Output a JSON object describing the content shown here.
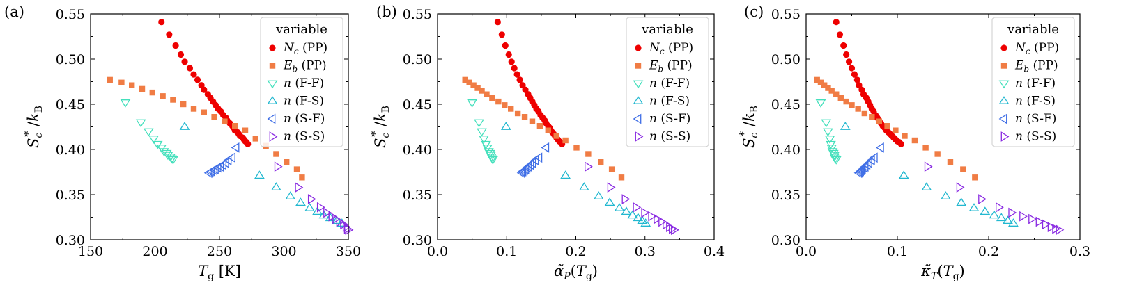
{
  "chart_data": [
    {
      "type": "scatter",
      "panel_label": "(a)",
      "xlabel": "T_g [K]",
      "ylabel": "S_c* / k_B",
      "xlim": [
        150,
        350
      ],
      "ylim": [
        0.3,
        0.55
      ],
      "xticks": [
        "150",
        "200",
        "250",
        "300",
        "350"
      ],
      "yticks": [
        "0.30",
        "0.35",
        "0.40",
        "0.45",
        "0.50",
        "0.55"
      ],
      "legend_title": "variable",
      "legend_position": "top-right",
      "series": [
        {
          "name": "Nc (PP)",
          "var": "N",
          "sub": "c",
          "tag": "(PP)",
          "marker": "circle",
          "color": "#ee0000",
          "filled": true,
          "x": [
            205,
            211,
            216,
            220,
            223,
            227,
            230,
            233,
            236,
            238,
            241,
            243,
            245,
            247,
            249,
            251,
            253,
            255,
            256,
            258,
            260,
            261,
            262,
            264,
            265,
            266,
            268,
            269,
            270,
            271,
            272
          ],
          "y": [
            0.541,
            0.527,
            0.515,
            0.505,
            0.497,
            0.49,
            0.483,
            0.477,
            0.471,
            0.466,
            0.461,
            0.457,
            0.453,
            0.449,
            0.445,
            0.442,
            0.438,
            0.435,
            0.432,
            0.429,
            0.426,
            0.424,
            0.421,
            0.419,
            0.417,
            0.415,
            0.413,
            0.411,
            0.409,
            0.408,
            0.406
          ]
        },
        {
          "name": "Eb (PP)",
          "var": "E",
          "sub": "b",
          "tag": "(PP)",
          "marker": "square",
          "color": "#f07c44",
          "filled": true,
          "x": [
            165,
            174,
            182,
            190,
            198,
            206,
            214,
            222,
            230,
            238,
            246,
            254,
            262,
            270,
            278,
            286,
            294,
            302,
            310,
            314
          ],
          "y": [
            0.477,
            0.474,
            0.471,
            0.467,
            0.463,
            0.459,
            0.455,
            0.45,
            0.445,
            0.441,
            0.436,
            0.431,
            0.426,
            0.421,
            0.412,
            0.404,
            0.395,
            0.386,
            0.378,
            0.369
          ]
        },
        {
          "name": "n (F-F)",
          "var": "n",
          "sub": "",
          "tag": "(F-F)",
          "marker": "tri_down",
          "color": "#44e0bc",
          "filled": false,
          "x": [
            177,
            189,
            195,
            199,
            202,
            205,
            207,
            209,
            210,
            212,
            213,
            214
          ],
          "y": [
            0.452,
            0.43,
            0.42,
            0.412,
            0.406,
            0.402,
            0.398,
            0.396,
            0.394,
            0.392,
            0.39,
            0.389
          ]
        },
        {
          "name": "n (F-S)",
          "var": "n",
          "sub": "",
          "tag": "(F-S)",
          "marker": "tri_up",
          "color": "#22b8d0",
          "filled": false,
          "x": [
            223,
            281,
            294,
            305,
            313,
            320,
            326,
            331,
            336,
            341,
            345
          ],
          "y": [
            0.425,
            0.371,
            0.358,
            0.348,
            0.341,
            0.335,
            0.331,
            0.327,
            0.324,
            0.321,
            0.318
          ]
        },
        {
          "name": "n (S-F)",
          "var": "n",
          "sub": "",
          "tag": "(S-F)",
          "marker": "tri_left",
          "color": "#3f6ee6",
          "filled": false,
          "x": [
            263,
            260,
            257,
            255,
            253,
            251,
            249,
            247,
            246,
            244,
            243,
            242
          ],
          "y": [
            0.402,
            0.391,
            0.388,
            0.385,
            0.383,
            0.381,
            0.38,
            0.378,
            0.377,
            0.376,
            0.375,
            0.374
          ]
        },
        {
          "name": "n (S-S)",
          "var": "n",
          "sub": "",
          "tag": "(S-S)",
          "marker": "tri_right",
          "color": "#8a2be2",
          "filled": false,
          "x": [
            295,
            311,
            321,
            328,
            333,
            337,
            340,
            343,
            346,
            348,
            349,
            350
          ],
          "y": [
            0.381,
            0.358,
            0.345,
            0.336,
            0.33,
            0.326,
            0.323,
            0.32,
            0.317,
            0.314,
            0.312,
            0.311
          ]
        }
      ]
    },
    {
      "type": "scatter",
      "panel_label": "(b)",
      "xlabel": "α̃_P(T_g)",
      "ylabel": "S_c* / k_B",
      "xlim": [
        0.0,
        0.4
      ],
      "ylim": [
        0.3,
        0.55
      ],
      "xticks": [
        "0.0",
        "0.1",
        "0.2",
        "0.3",
        "0.4"
      ],
      "yticks": [
        "0.30",
        "0.35",
        "0.40",
        "0.45",
        "0.50",
        "0.55"
      ],
      "legend_title": "variable",
      "legend_position": "top-right",
      "series": [
        {
          "name": "Nc (PP)",
          "var": "N",
          "sub": "c",
          "tag": "(PP)",
          "marker": "circle",
          "color": "#ee0000",
          "filled": true,
          "x": [
            0.087,
            0.093,
            0.098,
            0.103,
            0.107,
            0.111,
            0.115,
            0.119,
            0.123,
            0.127,
            0.131,
            0.134,
            0.137,
            0.14,
            0.143,
            0.146,
            0.149,
            0.152,
            0.155,
            0.157,
            0.16,
            0.162,
            0.164,
            0.166,
            0.168,
            0.17,
            0.172,
            0.174,
            0.176,
            0.178,
            0.18
          ],
          "y": [
            0.541,
            0.527,
            0.515,
            0.505,
            0.497,
            0.49,
            0.483,
            0.477,
            0.471,
            0.466,
            0.461,
            0.457,
            0.453,
            0.449,
            0.445,
            0.442,
            0.438,
            0.435,
            0.432,
            0.429,
            0.426,
            0.424,
            0.421,
            0.419,
            0.417,
            0.415,
            0.413,
            0.411,
            0.409,
            0.408,
            0.406
          ]
        },
        {
          "name": "Eb (PP)",
          "var": "E",
          "sub": "b",
          "tag": "(PP)",
          "marker": "square",
          "color": "#f07c44",
          "filled": true,
          "x": [
            0.04,
            0.046,
            0.052,
            0.058,
            0.064,
            0.071,
            0.079,
            0.088,
            0.097,
            0.106,
            0.116,
            0.126,
            0.137,
            0.148,
            0.16,
            0.172,
            0.185,
            0.201,
            0.218,
            0.236,
            0.252,
            0.266
          ],
          "y": [
            0.477,
            0.474,
            0.471,
            0.468,
            0.465,
            0.461,
            0.457,
            0.453,
            0.449,
            0.445,
            0.44,
            0.436,
            0.431,
            0.426,
            0.421,
            0.415,
            0.41,
            0.402,
            0.395,
            0.386,
            0.378,
            0.369
          ]
        },
        {
          "name": "n (F-F)",
          "var": "n",
          "sub": "",
          "tag": "(F-F)",
          "marker": "tri_down",
          "color": "#44e0bc",
          "filled": false,
          "x": [
            0.05,
            0.06,
            0.064,
            0.067,
            0.07,
            0.072,
            0.074,
            0.076,
            0.077,
            0.078,
            0.079,
            0.08
          ],
          "y": [
            0.452,
            0.43,
            0.42,
            0.412,
            0.406,
            0.402,
            0.398,
            0.396,
            0.394,
            0.392,
            0.39,
            0.389
          ]
        },
        {
          "name": "n (F-S)",
          "var": "n",
          "sub": "",
          "tag": "(F-S)",
          "marker": "tri_up",
          "color": "#22b8d0",
          "filled": false,
          "x": [
            0.099,
            0.185,
            0.212,
            0.233,
            0.249,
            0.263,
            0.273,
            0.282,
            0.29,
            0.296,
            0.301
          ],
          "y": [
            0.425,
            0.371,
            0.358,
            0.348,
            0.341,
            0.335,
            0.331,
            0.327,
            0.324,
            0.321,
            0.318
          ]
        },
        {
          "name": "n (S-F)",
          "var": "n",
          "sub": "",
          "tag": "(S-F)",
          "marker": "tri_left",
          "color": "#3f6ee6",
          "filled": false,
          "x": [
            0.157,
            0.147,
            0.142,
            0.138,
            0.135,
            0.132,
            0.13,
            0.128,
            0.126,
            0.124,
            0.123,
            0.122
          ],
          "y": [
            0.402,
            0.391,
            0.388,
            0.385,
            0.383,
            0.381,
            0.38,
            0.378,
            0.377,
            0.376,
            0.375,
            0.374
          ]
        },
        {
          "name": "n (S-S)",
          "var": "n",
          "sub": "",
          "tag": "(S-S)",
          "marker": "tri_right",
          "color": "#8a2be2",
          "filled": false,
          "x": [
            0.217,
            0.25,
            0.271,
            0.287,
            0.299,
            0.309,
            0.317,
            0.324,
            0.33,
            0.335,
            0.339,
            0.342
          ],
          "y": [
            0.381,
            0.358,
            0.345,
            0.336,
            0.33,
            0.326,
            0.323,
            0.32,
            0.317,
            0.314,
            0.312,
            0.311
          ]
        }
      ]
    },
    {
      "type": "scatter",
      "panel_label": "(c)",
      "xlabel": "κ̃_T(T_g)",
      "ylabel": "S_c* / k_B",
      "xlim": [
        0.0,
        0.3
      ],
      "ylim": [
        0.3,
        0.55
      ],
      "xticks": [
        "0.0",
        "0.1",
        "0.2",
        "0.3"
      ],
      "yticks": [
        "0.30",
        "0.35",
        "0.40",
        "0.45",
        "0.50",
        "0.55"
      ],
      "legend_title": "variable",
      "legend_position": "top-right",
      "series": [
        {
          "name": "Nc (PP)",
          "var": "N",
          "sub": "c",
          "tag": "(PP)",
          "marker": "circle",
          "color": "#ee0000",
          "filled": true,
          "x": [
            0.033,
            0.037,
            0.041,
            0.044,
            0.047,
            0.05,
            0.053,
            0.056,
            0.058,
            0.061,
            0.063,
            0.066,
            0.068,
            0.07,
            0.072,
            0.074,
            0.076,
            0.078,
            0.08,
            0.082,
            0.084,
            0.086,
            0.088,
            0.09,
            0.092,
            0.094,
            0.096,
            0.098,
            0.1,
            0.102,
            0.104
          ],
          "y": [
            0.541,
            0.527,
            0.515,
            0.505,
            0.497,
            0.49,
            0.483,
            0.477,
            0.471,
            0.466,
            0.461,
            0.457,
            0.453,
            0.449,
            0.445,
            0.442,
            0.438,
            0.435,
            0.432,
            0.429,
            0.426,
            0.424,
            0.421,
            0.419,
            0.417,
            0.415,
            0.413,
            0.411,
            0.409,
            0.408,
            0.406
          ]
        },
        {
          "name": "Eb (PP)",
          "var": "E",
          "sub": "b",
          "tag": "(PP)",
          "marker": "square",
          "color": "#f07c44",
          "filled": true,
          "x": [
            0.012,
            0.016,
            0.02,
            0.024,
            0.028,
            0.033,
            0.038,
            0.044,
            0.05,
            0.057,
            0.064,
            0.072,
            0.08,
            0.089,
            0.098,
            0.108,
            0.119,
            0.131,
            0.144,
            0.158,
            0.172,
            0.185
          ],
          "y": [
            0.477,
            0.474,
            0.471,
            0.468,
            0.465,
            0.461,
            0.457,
            0.453,
            0.449,
            0.445,
            0.44,
            0.436,
            0.431,
            0.426,
            0.421,
            0.415,
            0.41,
            0.402,
            0.395,
            0.386,
            0.378,
            0.369
          ]
        },
        {
          "name": "n (F-F)",
          "var": "n",
          "sub": "",
          "tag": "(F-F)",
          "marker": "tri_down",
          "color": "#44e0bc",
          "filled": false,
          "x": [
            0.016,
            0.022,
            0.024,
            0.026,
            0.027,
            0.028,
            0.029,
            0.03,
            0.031,
            0.031,
            0.032,
            0.033
          ],
          "y": [
            0.452,
            0.43,
            0.42,
            0.412,
            0.406,
            0.402,
            0.398,
            0.396,
            0.394,
            0.392,
            0.39,
            0.389
          ]
        },
        {
          "name": "n (F-S)",
          "var": "n",
          "sub": "",
          "tag": "(F-S)",
          "marker": "tri_up",
          "color": "#22b8d0",
          "filled": false,
          "x": [
            0.043,
            0.107,
            0.132,
            0.153,
            0.17,
            0.184,
            0.196,
            0.206,
            0.214,
            0.221,
            0.227
          ],
          "y": [
            0.425,
            0.371,
            0.358,
            0.348,
            0.341,
            0.335,
            0.331,
            0.327,
            0.324,
            0.321,
            0.318
          ]
        },
        {
          "name": "n (S-F)",
          "var": "n",
          "sub": "",
          "tag": "(S-F)",
          "marker": "tri_left",
          "color": "#3f6ee6",
          "filled": false,
          "x": [
            0.082,
            0.075,
            0.072,
            0.069,
            0.067,
            0.065,
            0.064,
            0.062,
            0.061,
            0.06,
            0.059,
            0.058
          ],
          "y": [
            0.402,
            0.391,
            0.388,
            0.385,
            0.383,
            0.381,
            0.38,
            0.378,
            0.377,
            0.376,
            0.375,
            0.374
          ]
        },
        {
          "name": "n (S-S)",
          "var": "n",
          "sub": "",
          "tag": "(S-S)",
          "marker": "tri_right",
          "color": "#8a2be2",
          "filled": false,
          "x": [
            0.133,
            0.168,
            0.192,
            0.211,
            0.225,
            0.237,
            0.247,
            0.255,
            0.262,
            0.268,
            0.273,
            0.277
          ],
          "y": [
            0.381,
            0.358,
            0.345,
            0.336,
            0.33,
            0.326,
            0.323,
            0.32,
            0.317,
            0.314,
            0.312,
            0.311
          ]
        }
      ]
    }
  ]
}
